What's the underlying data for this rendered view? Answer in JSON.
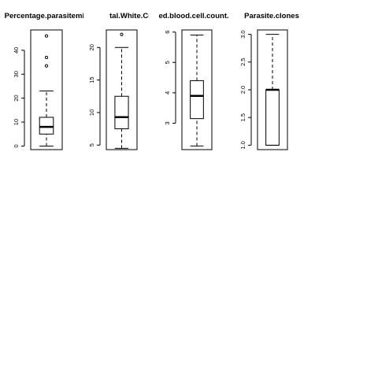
{
  "chart_data": [
    {
      "type": "boxplot",
      "title": "Percentage.parasitemia",
      "ylim": [
        -1.5,
        48.5
      ],
      "ticks": [
        0,
        10,
        20,
        30,
        40
      ],
      "stats": {
        "lower_whisker": 0,
        "q1": 5,
        "median": 8,
        "q3": 12,
        "upper_whisker": 23
      },
      "outliers": [
        33.5,
        37,
        46
      ]
    },
    {
      "type": "boxplot",
      "title": "Total.White.Cell.Count",
      "ylim": [
        4.3,
        22.7
      ],
      "ticks": [
        5,
        10,
        15,
        20
      ],
      "stats": {
        "lower_whisker": 4.5,
        "q1": 7.5,
        "median": 9.3,
        "q3": 12.5,
        "upper_whisker": 20
      },
      "outliers": [
        22
      ]
    },
    {
      "type": "boxplot",
      "title": "Red.blood.cell.count..x",
      "ylim": [
        2.13,
        6.07
      ],
      "ticks": [
        3,
        4,
        5,
        6
      ],
      "stats": {
        "lower_whisker": 2.25,
        "q1": 3.15,
        "median": 3.9,
        "q3": 4.4,
        "upper_whisker": 5.9
      },
      "outliers": []
    },
    {
      "type": "boxplot",
      "title": "Parasite.clones",
      "ylim": [
        0.92,
        3.08
      ],
      "ticks": [
        1.0,
        1.5,
        2.0,
        2.5,
        3.0
      ],
      "stats": {
        "lower_whisker": 1.0,
        "q1": 1.0,
        "median": 2.0,
        "q3": 2.0,
        "upper_whisker": 3.0
      },
      "outliers": []
    }
  ]
}
